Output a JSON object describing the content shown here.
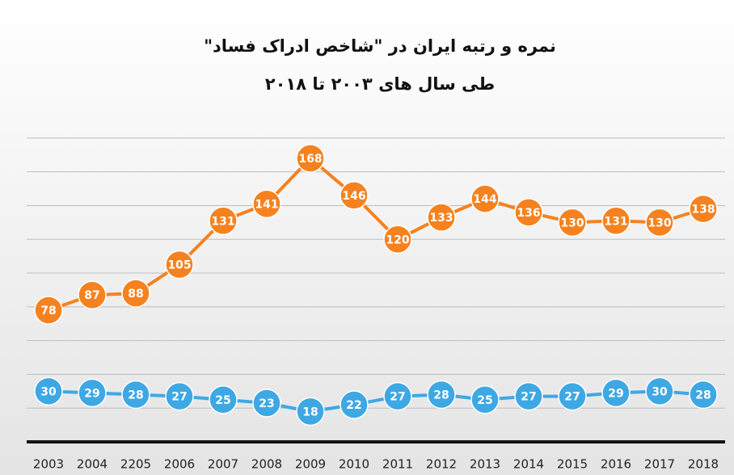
{
  "chart_data": {
    "type": "line",
    "title": "نمره و رتبه ایران در \"شاخص ادراک فساد\"",
    "subtitle": "طی سال های ۲۰۰۳ تا ۲۰۱۸",
    "categories": [
      "2003",
      "2004",
      "2205",
      "2006",
      "2007",
      "2008",
      "2009",
      "2010",
      "2011",
      "2012",
      "2013",
      "2014",
      "2015",
      "2016",
      "2017",
      "2018"
    ],
    "series": [
      {
        "color": "#f5821f",
        "values": [
          78,
          87,
          88,
          105,
          131,
          141,
          168,
          146,
          120,
          133,
          144,
          136,
          130,
          131,
          130,
          138
        ]
      },
      {
        "color": "#3ea8e5",
        "values": [
          30,
          29,
          28,
          27,
          25,
          23,
          18,
          22,
          27,
          28,
          25,
          27,
          27,
          29,
          30,
          28
        ]
      }
    ],
    "ylim": [
      0,
      190
    ],
    "yticks": [
      0,
      20,
      40,
      60,
      80,
      100,
      120,
      140,
      160,
      180
    ],
    "grid": true
  }
}
